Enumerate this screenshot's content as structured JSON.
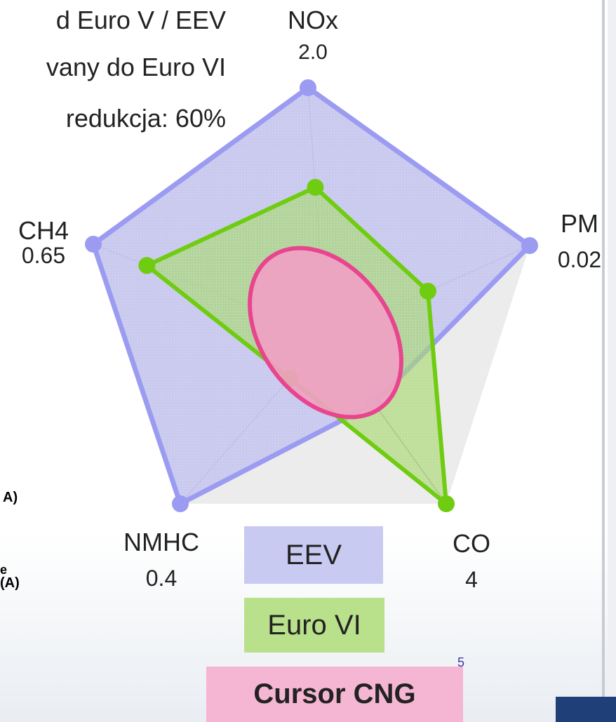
{
  "intro_lines": [
    "d Euro V / EEV",
    "vany do Euro VI",
    "redukcja: 60%"
  ],
  "side_notes": [
    {
      "text": "A)",
      "color": "#e01010"
    },
    {
      "text": "e",
      "color": "#22bb22"
    },
    {
      "text": "(A)",
      "color": "#22bb22"
    }
  ],
  "page_number": "5",
  "chart_data": {
    "type": "radar",
    "axes": [
      {
        "name": "NOx",
        "limit": "2.0"
      },
      {
        "name": "PM",
        "limit": "0.02"
      },
      {
        "name": "CO",
        "limit": "4"
      },
      {
        "name": "NMHC",
        "limit": "0.4"
      },
      {
        "name": "CH4",
        "limit": "0.65"
      }
    ],
    "series": [
      {
        "name": "EEV",
        "values": [
          1.0,
          1.0,
          0.4,
          1.0,
          1.0
        ],
        "color": "#9b9bf2",
        "fill": "#c4c4f0"
      },
      {
        "name": "Euro VI",
        "values": [
          0.6,
          0.5,
          1.0,
          0.25,
          0.77
        ],
        "color": "#6fcc10",
        "fill": "#a8d870"
      },
      {
        "name": "Cursor CNG",
        "values": [],
        "color": "#e8458e",
        "fill": "#f1a0c4"
      }
    ],
    "legend": {
      "EEV": "EEV",
      "euro": "Euro VI",
      "cng": "Cursor CNG"
    },
    "grid": true
  }
}
